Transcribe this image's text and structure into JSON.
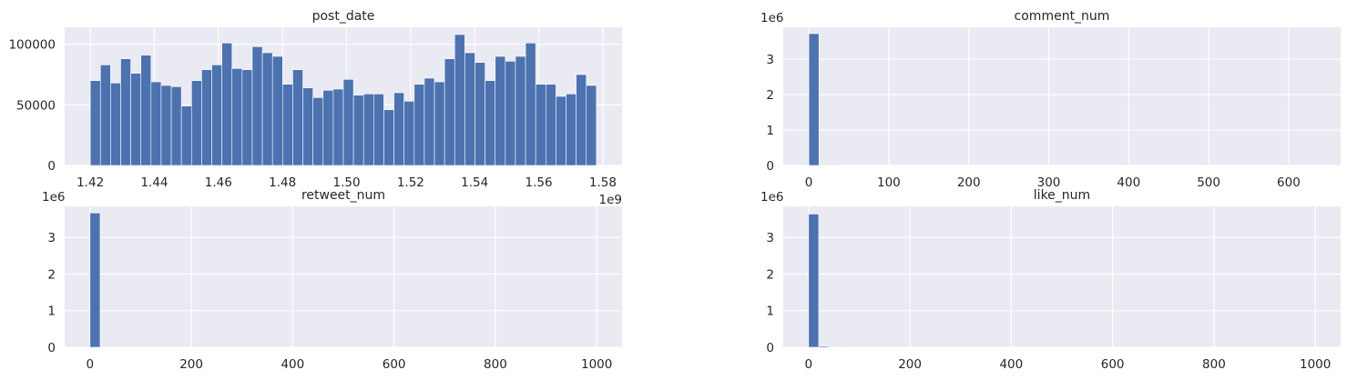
{
  "figure": {
    "background": "#ffffff",
    "axes_facecolor": "#eaeaf2",
    "grid_color": "#ffffff",
    "bar_color": "#4c72b0",
    "text_color": "#262626"
  },
  "chart_data": [
    {
      "type": "bar",
      "title": "post_date",
      "xlabel": "",
      "ylabel": "",
      "xlim": [
        1.412,
        1.586
      ],
      "ylim": [
        0,
        114000
      ],
      "xticks": [
        1.42,
        1.44,
        1.46,
        1.48,
        1.5,
        1.52,
        1.54,
        1.56,
        1.58
      ],
      "xtick_labels": [
        "1.42",
        "1.44",
        "1.46",
        "1.48",
        "1.50",
        "1.52",
        "1.54",
        "1.56",
        "1.58"
      ],
      "x_offset_label": "1e9",
      "yticks": [
        0,
        50000,
        100000
      ],
      "ytick_labels": [
        "0",
        "50000",
        "100000"
      ],
      "y_offset_label": "",
      "grid": true,
      "bin_start": 1.42,
      "bin_width": 0.00316,
      "values": [
        70000,
        83000,
        68000,
        88000,
        76000,
        91000,
        69000,
        66000,
        65000,
        49000,
        70000,
        79000,
        83000,
        101000,
        80000,
        79000,
        98000,
        93000,
        90000,
        67000,
        79000,
        64000,
        56000,
        62000,
        63000,
        71000,
        58000,
        59000,
        59000,
        46000,
        60000,
        53000,
        67000,
        72000,
        69000,
        88000,
        108000,
        93000,
        85000,
        70000,
        90000,
        86000,
        90000,
        101000,
        67000,
        67000,
        57000,
        59000,
        75000,
        66000
      ]
    },
    {
      "type": "bar",
      "title": "comment_num",
      "xlabel": "",
      "ylabel": "",
      "xlim": [
        -32,
        665
      ],
      "ylim": [
        0,
        3.9
      ],
      "xticks": [
        0,
        100,
        200,
        300,
        400,
        500,
        600
      ],
      "xtick_labels": [
        "0",
        "100",
        "200",
        "300",
        "400",
        "500",
        "600"
      ],
      "x_offset_label": "",
      "yticks": [
        0,
        1,
        2,
        3
      ],
      "ytick_labels": [
        "0",
        "1",
        "2",
        "3"
      ],
      "y_offset_label": "1e6",
      "grid": true,
      "bin_start": 0,
      "bin_width": 12.7,
      "values": [
        3.72,
        0.003,
        0.001,
        0.0005,
        0.0003,
        0.0002,
        0.0001,
        0.0001,
        0.0001,
        0.0001,
        0,
        0,
        0,
        0,
        0,
        0,
        0,
        0,
        0,
        0,
        0,
        0,
        0,
        0,
        0,
        0,
        0,
        0,
        0,
        0,
        0,
        0,
        0,
        0,
        0,
        0,
        0,
        0,
        0,
        0,
        0,
        0,
        0,
        0,
        0,
        0,
        0,
        0,
        0,
        0
      ]
    },
    {
      "type": "bar",
      "title": "retweet_num",
      "xlabel": "",
      "ylabel": "",
      "xlim": [
        -50,
        1050
      ],
      "ylim": [
        0,
        3.85
      ],
      "xticks": [
        0,
        200,
        400,
        600,
        800,
        1000
      ],
      "xtick_labels": [
        "0",
        "200",
        "400",
        "600",
        "800",
        "1000"
      ],
      "x_offset_label": "",
      "yticks": [
        0,
        1,
        2,
        3
      ],
      "ytick_labels": [
        "0",
        "1",
        "2",
        "3"
      ],
      "y_offset_label": "1e6",
      "grid": true,
      "bin_start": 0,
      "bin_width": 20,
      "values": [
        3.67,
        0.002,
        0.001,
        0.0005,
        0.0003,
        0.0002,
        0.0001,
        0.0001,
        0,
        0,
        0,
        0,
        0,
        0,
        0,
        0,
        0,
        0,
        0,
        0,
        0,
        0,
        0,
        0,
        0,
        0,
        0,
        0,
        0,
        0,
        0,
        0,
        0,
        0,
        0,
        0,
        0,
        0,
        0,
        0,
        0,
        0,
        0,
        0,
        0,
        0,
        0,
        0,
        0,
        0
      ]
    },
    {
      "type": "bar",
      "title": "like_num",
      "xlabel": "",
      "ylabel": "",
      "xlim": [
        -50,
        1050
      ],
      "ylim": [
        0,
        3.85
      ],
      "xticks": [
        0,
        200,
        400,
        600,
        800,
        1000
      ],
      "xtick_labels": [
        "0",
        "200",
        "400",
        "600",
        "800",
        "1000"
      ],
      "x_offset_label": "",
      "yticks": [
        0,
        1,
        2,
        3
      ],
      "ytick_labels": [
        "0",
        "1",
        "2",
        "3"
      ],
      "y_offset_label": "1e6",
      "grid": true,
      "bin_start": 0,
      "bin_width": 20,
      "values": [
        3.64,
        0.03,
        0.006,
        0.002,
        0.001,
        0.0005,
        0.0003,
        0.0002,
        0.0001,
        0.0001,
        0,
        0,
        0,
        0,
        0,
        0,
        0,
        0,
        0,
        0,
        0,
        0,
        0,
        0,
        0,
        0,
        0,
        0,
        0,
        0,
        0,
        0,
        0,
        0,
        0,
        0,
        0,
        0,
        0,
        0,
        0,
        0,
        0,
        0,
        0,
        0,
        0,
        0,
        0,
        0
      ]
    }
  ]
}
